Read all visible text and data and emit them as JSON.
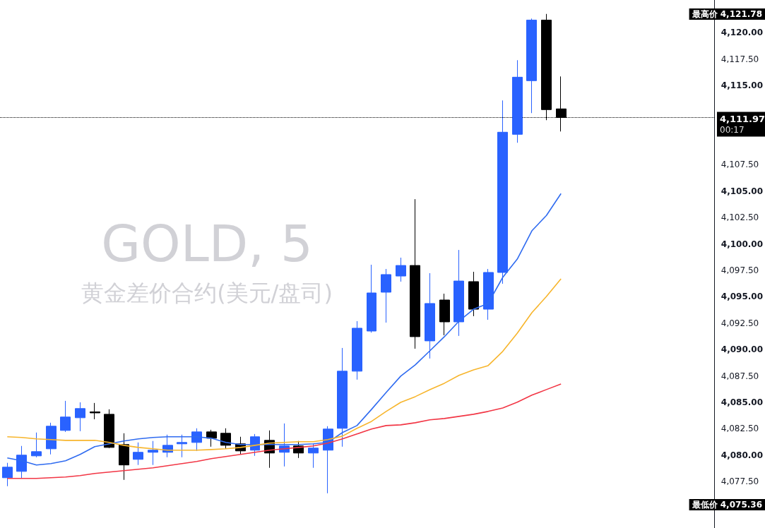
{
  "chart_data": {
    "type": "candlestick",
    "title": "GOLD, 5",
    "subtitle": "黄金差价合约(美元/盘司)",
    "categories": [
      null,
      null,
      null,
      null,
      null,
      null,
      null,
      null,
      null,
      null,
      null,
      null,
      null,
      null,
      null,
      null,
      null,
      null,
      null,
      null,
      null,
      null,
      null,
      null,
      null,
      null,
      null,
      null,
      null,
      null,
      null,
      null,
      null,
      null,
      null,
      null,
      null,
      null,
      null
    ],
    "ohlc": [
      [
        4077.86,
        4079.27,
        4077.06,
        4078.86
      ],
      [
        4078.46,
        4080.87,
        4077.8,
        4080.0
      ],
      [
        4079.93,
        4082.14,
        4079.8,
        4080.33
      ],
      [
        4080.6,
        4083.07,
        4080.07,
        4082.74
      ],
      [
        4082.34,
        4085.14,
        4082.2,
        4083.61
      ],
      [
        4083.54,
        4085.0,
        4082.27,
        4084.41
      ],
      [
        4084.1,
        4084.94,
        4083.4,
        4084.0
      ],
      [
        4083.87,
        4084.34,
        4080.67,
        4080.73
      ],
      [
        4081.0,
        4082.07,
        4077.66,
        4079.07
      ],
      [
        4079.6,
        4081.2,
        4079.07,
        4080.27
      ],
      [
        4080.27,
        4081.34,
        4079.07,
        4080.47
      ],
      [
        4080.27,
        4081.94,
        4079.8,
        4080.93
      ],
      [
        4081.07,
        4081.94,
        4079.8,
        4081.2
      ],
      [
        4081.2,
        4082.54,
        4080.4,
        4082.2
      ],
      [
        4082.2,
        4082.4,
        4080.8,
        4081.6
      ],
      [
        4082.07,
        4082.54,
        4080.6,
        4080.93
      ],
      [
        4081.07,
        4081.74,
        4080.07,
        4080.4
      ],
      [
        4080.47,
        4082.0,
        4079.93,
        4081.74
      ],
      [
        4081.4,
        4082.34,
        4078.8,
        4080.2
      ],
      [
        4080.27,
        4083.0,
        4078.93,
        4080.87
      ],
      [
        4080.87,
        4081.34,
        4079.73,
        4080.2
      ],
      [
        4080.2,
        4081.07,
        4078.8,
        4080.67
      ],
      [
        4080.47,
        4082.74,
        4076.39,
        4082.47
      ],
      [
        4082.54,
        4090.15,
        4080.8,
        4087.95
      ],
      [
        4087.95,
        4092.69,
        4087.15,
        4092.02
      ],
      [
        4091.75,
        4098.03,
        4091.6,
        4095.36
      ],
      [
        4095.43,
        4097.63,
        4092.55,
        4097.1
      ],
      [
        4096.96,
        4098.7,
        4096.43,
        4097.96
      ],
      [
        4097.96,
        4104.24,
        4090.08,
        4091.22
      ],
      [
        4090.82,
        4097.23,
        4089.15,
        4094.36
      ],
      [
        4094.69,
        4095.29,
        4091.35,
        4092.62
      ],
      [
        4092.62,
        4099.43,
        4091.29,
        4096.49
      ],
      [
        4096.43,
        4097.36,
        4093.16,
        4093.82
      ],
      [
        4093.82,
        4097.63,
        4092.82,
        4097.3
      ],
      [
        4097.3,
        4113.59,
        4096.23,
        4110.58
      ],
      [
        4110.38,
        4117.4,
        4109.58,
        4115.79
      ],
      [
        4115.46,
        4121.34,
        4112.39,
        4121.2
      ],
      [
        4121.2,
        4121.78,
        4111.72,
        4112.72
      ],
      [
        4112.79,
        4115.86,
        4110.65,
        4111.97
      ]
    ],
    "colors": [
      "#2962ff",
      "#2962ff",
      "#2962ff",
      "#2962ff",
      "#2962ff",
      "#2962ff",
      "#000000",
      "#000000",
      "#000000",
      "#2962ff",
      "#2962ff",
      "#2962ff",
      "#2962ff",
      "#2962ff",
      "#000000",
      "#000000",
      "#000000",
      "#2962ff",
      "#000000",
      "#2962ff",
      "#000000",
      "#2962ff",
      "#2962ff",
      "#2962ff",
      "#2962ff",
      "#2962ff",
      "#2962ff",
      "#2962ff",
      "#000000",
      "#2962ff",
      "#000000",
      "#2962ff",
      "#000000",
      "#2962ff",
      "#2962ff",
      "#2962ff",
      "#2962ff",
      "#000000",
      "#000000"
    ],
    "series": [
      {
        "type": "line",
        "color": "#2f6bf0",
        "values": [
          4079.73,
          4079.47,
          4079.07,
          4079.2,
          4079.47,
          4080.07,
          4080.8,
          4081.07,
          4081.34,
          4081.54,
          4081.67,
          4081.74,
          4081.74,
          4081.74,
          4081.6,
          4081.2,
          4081.0,
          4081.0,
          4081.0,
          4081.0,
          4081.0,
          4081.07,
          4081.2,
          4082.14,
          4082.8,
          4084.34,
          4085.94,
          4087.48,
          4088.55,
          4089.88,
          4091.22,
          4092.69,
          4093.82,
          4094.36,
          4096.83,
          4098.56,
          4101.24,
          4102.7,
          4104.77
        ]
      },
      {
        "type": "line",
        "color": "#f7b52c",
        "values": [
          4081.74,
          4081.67,
          4081.54,
          4081.47,
          4081.4,
          4081.4,
          4081.4,
          4081.2,
          4080.93,
          4080.73,
          4080.6,
          4080.47,
          4080.47,
          4080.47,
          4080.53,
          4080.6,
          4080.73,
          4080.93,
          4081.14,
          4081.2,
          4081.27,
          4081.27,
          4081.47,
          4081.8,
          4082.54,
          4083.2,
          4084.14,
          4085.0,
          4085.54,
          4086.2,
          4086.81,
          4087.55,
          4088.08,
          4088.48,
          4089.82,
          4091.55,
          4093.49,
          4095.02,
          4096.69
        ]
      },
      {
        "type": "line",
        "color": "#f23645",
        "values": [
          4077.8,
          4077.8,
          4077.8,
          4077.86,
          4077.93,
          4078.06,
          4078.26,
          4078.4,
          4078.53,
          4078.66,
          4078.8,
          4079.0,
          4079.2,
          4079.4,
          4079.67,
          4079.87,
          4080.07,
          4080.27,
          4080.47,
          4080.6,
          4080.73,
          4080.87,
          4081.14,
          4081.54,
          4082.0,
          4082.47,
          4082.8,
          4082.87,
          4083.07,
          4083.34,
          4083.47,
          4083.67,
          4083.87,
          4084.14,
          4084.47,
          4085.01,
          4085.68,
          4086.21,
          4086.74
        ]
      }
    ],
    "marker": "none",
    "ylim": [
      4073.1,
      4123.1
    ],
    "yticks": [
      {
        "value": 4077.5,
        "label": "4,077.50"
      },
      {
        "value": 4080,
        "label": "4,080.00"
      },
      {
        "value": 4082.5,
        "label": "4,082.50"
      },
      {
        "value": 4085,
        "label": "4,085.00"
      },
      {
        "value": 4087.5,
        "label": "4,087.50"
      },
      {
        "value": 4090,
        "label": "4,090.00"
      },
      {
        "value": 4092.5,
        "label": "4,092.50"
      },
      {
        "value": 4095,
        "label": "4,095.00"
      },
      {
        "value": 4097.5,
        "label": "4,097.50"
      },
      {
        "value": 4100,
        "label": "4,100.00"
      },
      {
        "value": 4102.5,
        "label": "4,102.50"
      },
      {
        "value": 4105,
        "label": "4,105.00"
      },
      {
        "value": 4107.5,
        "label": "4,107.50"
      },
      {
        "value": 4115,
        "label": "4,115.00"
      },
      {
        "value": 4117.5,
        "label": "4,117.50"
      },
      {
        "value": 4120,
        "label": "4,120.00"
      }
    ],
    "tick_labels": "y",
    "ref_lines": [
      {
        "axis": "y",
        "value": 4111.97,
        "label": "4,111.97",
        "line_style": "dotted",
        "color": "#000000"
      }
    ],
    "annotations": [
      "00:17",
      "最高价 4,121.78",
      "最低价 4,075.36"
    ]
  }
}
